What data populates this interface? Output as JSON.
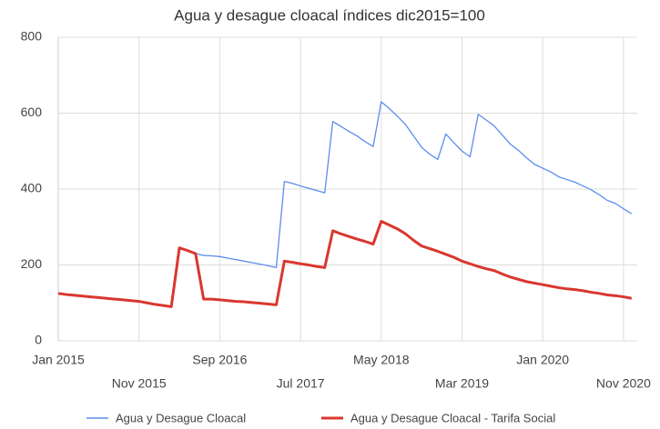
{
  "chart_data": {
    "type": "line",
    "title": "Agua y desague cloacal índices dic2015=100",
    "categories": [
      "Jan 2015",
      null,
      null,
      null,
      null,
      null,
      null,
      null,
      null,
      null,
      "Nov 2015",
      null,
      null,
      null,
      null,
      null,
      null,
      null,
      null,
      null,
      "Sep 2016",
      null,
      null,
      null,
      null,
      null,
      null,
      null,
      null,
      null,
      "Jul 2017",
      null,
      null,
      null,
      null,
      null,
      null,
      null,
      null,
      null,
      "May 2018",
      null,
      null,
      null,
      null,
      null,
      null,
      null,
      null,
      null,
      "Mar 2019",
      null,
      null,
      null,
      null,
      null,
      null,
      null,
      null,
      null,
      "Jan 2020",
      null,
      null,
      null,
      null,
      null,
      null,
      null,
      null,
      null,
      "Nov 2020",
      null
    ],
    "series": [
      {
        "name": "Agua y Desague Cloacal",
        "color": "#5b8def",
        "values": [
          125,
          122,
          120,
          118,
          116,
          114,
          112,
          110,
          108,
          106,
          104,
          100,
          96,
          93,
          90,
          245,
          238,
          230,
          225,
          224,
          222,
          218,
          214,
          210,
          206,
          202,
          198,
          193,
          420,
          415,
          408,
          402,
          396,
          390,
          578,
          565,
          552,
          540,
          525,
          512,
          630,
          612,
          592,
          570,
          540,
          510,
          492,
          478,
          545,
          522,
          500,
          485,
          597,
          582,
          566,
          542,
          518,
          502,
          482,
          465,
          455,
          445,
          432,
          425,
          418,
          408,
          398,
          385,
          370,
          362,
          348,
          335
        ]
      },
      {
        "name": "Agua y Desague Cloacal - Tarifa Social",
        "color": "#d9372f",
        "values": [
          125,
          122,
          120,
          118,
          116,
          114,
          112,
          110,
          108,
          106,
          104,
          100,
          96,
          93,
          90,
          245,
          238,
          230,
          110,
          110,
          108,
          106,
          104,
          103,
          101,
          99,
          97,
          95,
          210,
          207,
          203,
          200,
          196,
          193,
          290,
          282,
          275,
          268,
          262,
          255,
          315,
          305,
          295,
          282,
          265,
          250,
          243,
          236,
          228,
          220,
          210,
          203,
          196,
          190,
          185,
          176,
          168,
          162,
          156,
          152,
          148,
          144,
          140,
          137,
          135,
          132,
          128,
          125,
          121,
          119,
          116,
          112
        ]
      }
    ],
    "ylim": [
      0,
      800
    ],
    "yticks": [
      0,
      200,
      400,
      600,
      800
    ],
    "grid": true,
    "legend": "bottom"
  }
}
